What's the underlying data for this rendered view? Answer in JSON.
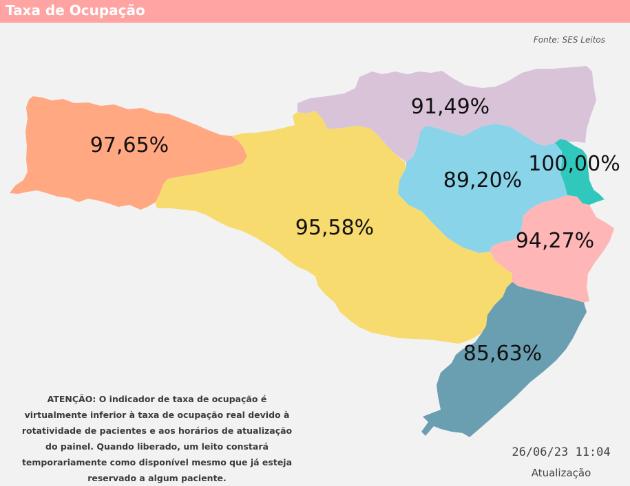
{
  "header": {
    "title": "Taxa de Ocupação"
  },
  "source": "Fonte: SES Leitos",
  "colors": {
    "header_bg": "#ffa3a3",
    "background": "#f2f2f2"
  },
  "regions": [
    {
      "id": "extremo-oeste",
      "value": "97,65%",
      "color": "#ffa882"
    },
    {
      "id": "oeste-meio-oeste",
      "value": "95,58%",
      "color": "#f7db6f"
    },
    {
      "id": "norte",
      "value": "91,49%",
      "color": "#d9c3d9"
    },
    {
      "id": "vale-itajai",
      "value": "89,20%",
      "color": "#8ad4ea"
    },
    {
      "id": "foz-litoral",
      "value": "100,00%",
      "color": "#30c7bc"
    },
    {
      "id": "grande-florianopolis",
      "value": "94,27%",
      "color": "#ffb6b6"
    },
    {
      "id": "sul",
      "value": "85,63%",
      "color": "#6a9fb1"
    }
  ],
  "note": "ATENÇÃO: O indicador de taxa de ocupação é virtualmente inferior à taxa de ocupação real devido à rotatividade de pacientes e aos horários de atualização do painel.  Quando liberado, um leito constará temporariamente como disponível mesmo que já esteja reservado a algum paciente.",
  "update": {
    "datetime": "26/06/23 11:04",
    "label": "Atualização"
  }
}
